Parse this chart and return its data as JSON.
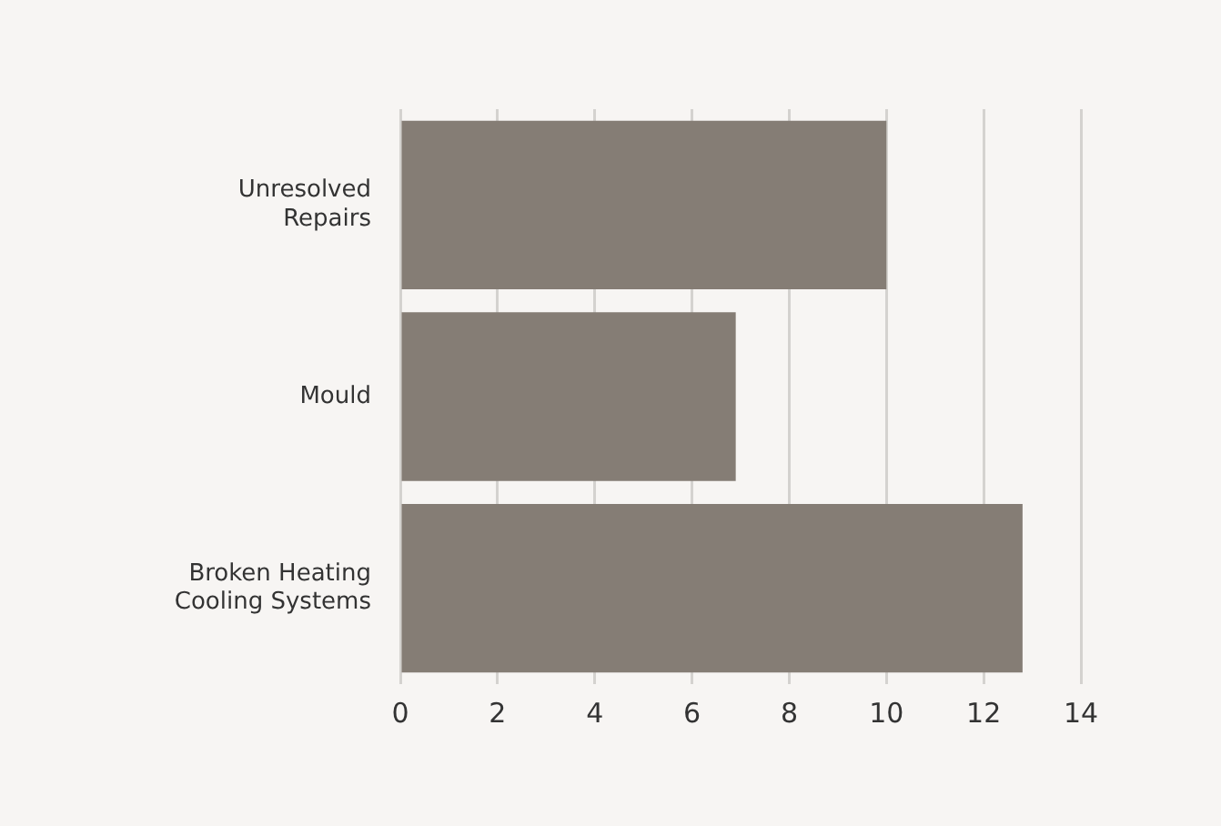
{
  "chart_data": {
    "type": "bar",
    "orientation": "horizontal",
    "categories": [
      "Unresolved Repairs",
      "Mould",
      "Broken Heating Cooling Systems"
    ],
    "values": [
      10,
      6.9,
      12.8
    ],
    "color": "#857d75",
    "xlim": [
      0,
      14
    ],
    "xticks": [
      0,
      2,
      4,
      6,
      8,
      10,
      12,
      14
    ],
    "grid": "x",
    "legend": false
  }
}
